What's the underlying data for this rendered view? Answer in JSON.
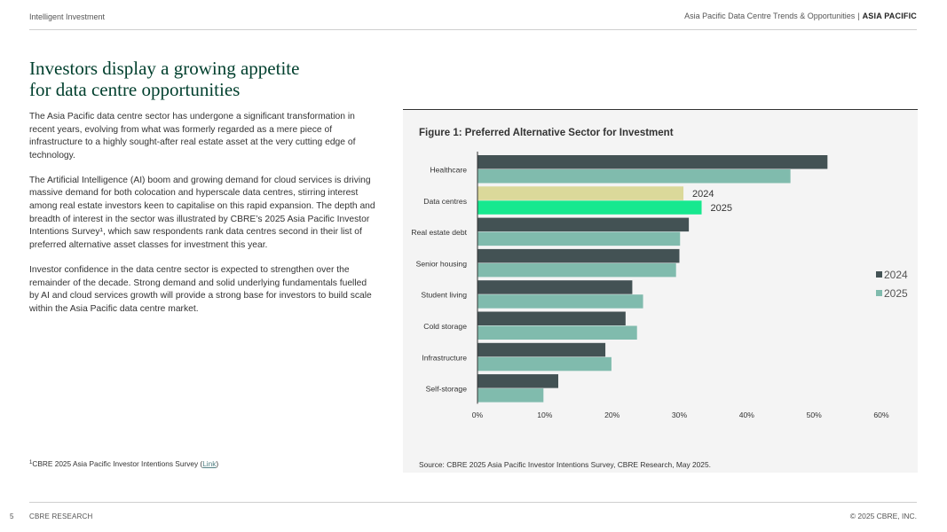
{
  "header": {
    "left": "Intelligent Investment",
    "report": "Asia Pacific Data Centre Trends & Opportunities",
    "separator": "|",
    "region": "ASIA PACIFIC"
  },
  "title_line1": "Investors display a growing appetite",
  "title_line2": "for data centre opportunities",
  "body": [
    "The Asia Pacific data centre sector has undergone a significant transformation in recent years, evolving from what was formerly regarded as a mere piece of infrastructure to a highly sought-after real estate asset at the very cutting edge of technology.",
    "The Artificial Intelligence (AI) boom and growing demand for cloud services is driving massive demand for both colocation and hyperscale data centres, stirring interest among real estate investors keen to capitalise on this rapid expansion. The depth and breadth of interest in the sector was illustrated by CBRE’s 2025 Asia Pacific Investor Intentions Survey¹, which saw respondents rank data centres second in their list of preferred alternative asset classes for investment this year.",
    "Investor confidence in the data centre sector is expected to strengthen over the remainder of the decade. Strong demand and solid underlying fundamentals fuelled by AI and cloud services growth will provide a strong base for investors to build scale within the Asia Pacific data centre market."
  ],
  "footnote": {
    "marker": "1",
    "text": "CBRE 2025 Asia Pacific Investor Intentions Survey (",
    "link": "Link",
    "close": ")"
  },
  "figure": {
    "title": "Figure 1: Preferred Alternative Sector for Investment",
    "source": "Source: CBRE 2025 Asia Pacific Investor Intentions Survey, CBRE Research, May 2025."
  },
  "chart_data": {
    "type": "bar",
    "orientation": "horizontal",
    "title": "Figure 1: Preferred Alternative Sector for Investment",
    "categories": [
      "Healthcare",
      "Data centres",
      "Real estate debt",
      "Senior housing",
      "Student living",
      "Cold storage",
      "Infrastructure",
      "Self-storage"
    ],
    "series": [
      {
        "name": "2024",
        "values": [
          52,
          30.6,
          31.4,
          30,
          23,
          22,
          19,
          12
        ]
      },
      {
        "name": "2025",
        "values": [
          46.5,
          33.3,
          30.1,
          29.5,
          24.6,
          23.7,
          19.9,
          9.8
        ]
      }
    ],
    "highlight": {
      "category": "Data centres",
      "labels": [
        "2024",
        "2025"
      ],
      "colors": [
        "#dbd99a",
        "#17e88f"
      ]
    },
    "colors": [
      "#435254",
      "#80bbad"
    ],
    "xlim": [
      0,
      60
    ],
    "xticks": [
      0,
      10,
      20,
      30,
      40,
      50,
      60
    ],
    "xtick_labels": [
      "0%",
      "10%",
      "20%",
      "30%",
      "40%",
      "50%",
      "60%"
    ],
    "xlabel": "",
    "ylabel": "",
    "legend": "right"
  },
  "footer": {
    "page": "5",
    "left": "CBRE RESEARCH",
    "right": "© 2025 CBRE, INC."
  }
}
